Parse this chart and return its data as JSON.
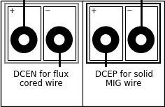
{
  "background_color": "#ffffff",
  "left_label_line1": "DCEN for flux",
  "left_label_line2": "cored wire",
  "right_label_line1": "DCEP for solid",
  "right_label_line2": "MIG wire",
  "label_fontsize": 8.5,
  "plus_minus_fontsize": 7.5,
  "outer_border_lw": 1.0,
  "inner_border_lw": 0.8,
  "wire_lw": 2.0,
  "left_panel_border_color": "#888888",
  "right_panel_border_color": "#000000",
  "panel_divider_color": "#000000"
}
